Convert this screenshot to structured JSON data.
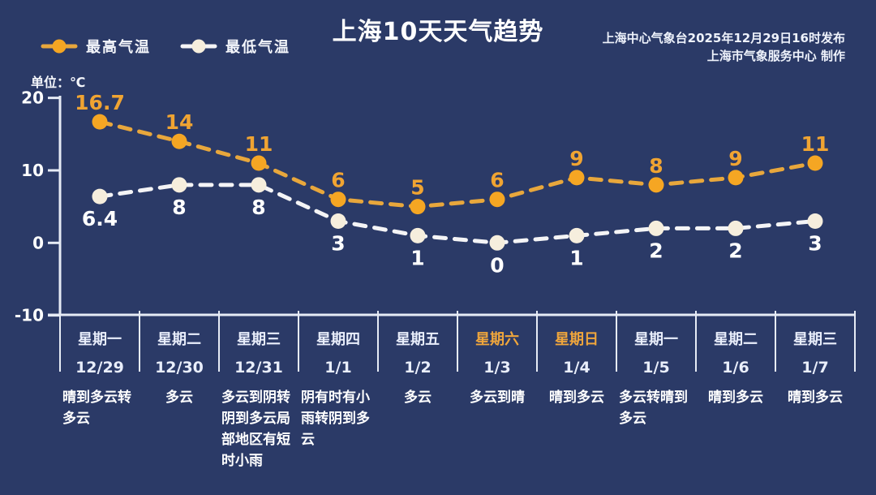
{
  "header": {
    "title": "上海10天天气趋势",
    "source_line1": "上海中心气象台2025年12月29日16时发布",
    "source_line2": "上海市气象服务中心 制作"
  },
  "legend": {
    "high": "最高气温",
    "low": "最低气温"
  },
  "unit_label": "单位：℃",
  "colors": {
    "background": "#2b3a67",
    "axis": "#e6ebf5",
    "high_orange": "#f5a623",
    "low_cream": "#f6eedd",
    "weekend_orange": "#f0a63c",
    "text_white": "#ffffff"
  },
  "chart_data": {
    "type": "line",
    "title": "上海10天天气趋势",
    "x": [
      "12/29",
      "12/30",
      "12/31",
      "1/1",
      "1/2",
      "1/3",
      "1/4",
      "1/5",
      "1/6",
      "1/7"
    ],
    "weekdays": [
      "星期一",
      "星期二",
      "星期三",
      "星期四",
      "星期五",
      "星期六",
      "星期日",
      "星期一",
      "星期二",
      "星期三"
    ],
    "weekend": [
      false,
      false,
      false,
      false,
      false,
      true,
      true,
      false,
      false,
      false
    ],
    "weather": [
      "晴到多云转多云",
      "多云",
      "多云到阴转阴到多云局部地区有短时小雨",
      "阴有时有小雨转阴到多云",
      "多云",
      "多云到晴",
      "晴到多云",
      "多云转晴到多云",
      "晴到多云",
      "晴到多云"
    ],
    "series": [
      {
        "name": "最高气温",
        "values": [
          16.7,
          14,
          11,
          6,
          5,
          6,
          9,
          8,
          9,
          11
        ],
        "line_color": "#e8a73c",
        "marker_color": "#f5a623",
        "label_color": "#f0a432"
      },
      {
        "name": "最低气温",
        "values": [
          6.4,
          8,
          8,
          3,
          1,
          0,
          1,
          2,
          2,
          3
        ],
        "line_color": "#f4f4f6",
        "marker_color": "#f6eedd",
        "label_color": "#ffffff"
      }
    ],
    "y_ticks": [
      20,
      10,
      0,
      -10
    ],
    "ylim": [
      -10,
      20
    ],
    "unit": "℃",
    "grid": false,
    "legend_position": "top-left",
    "dash_style": "dashed"
  }
}
